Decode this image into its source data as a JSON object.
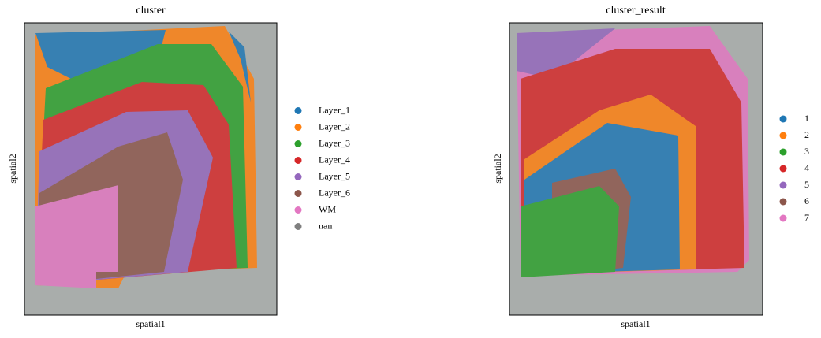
{
  "chart_data": [
    {
      "type": "spatial",
      "title": "cluster",
      "x_label": "spatial1",
      "y_label": "spatial2",
      "categories": [
        "Layer_1",
        "Layer_2",
        "Layer_3",
        "Layer_4",
        "Layer_5",
        "Layer_6",
        "WM",
        "nan"
      ],
      "colors": [
        "#1f77b4",
        "#ff7f0e",
        "#2ca02c",
        "#d62728",
        "#9467bd",
        "#8c564b",
        "#e377c2",
        "#7f7f7f"
      ]
    },
    {
      "type": "spatial",
      "title": "cluster_result",
      "x_label": "spatial1",
      "y_label": "spatial2",
      "categories": [
        "1",
        "2",
        "3",
        "4",
        "5",
        "6",
        "7"
      ],
      "colors": [
        "#1f77b4",
        "#ff7f0e",
        "#2ca02c",
        "#d62728",
        "#9467bd",
        "#8c564b",
        "#e377c2"
      ]
    }
  ]
}
